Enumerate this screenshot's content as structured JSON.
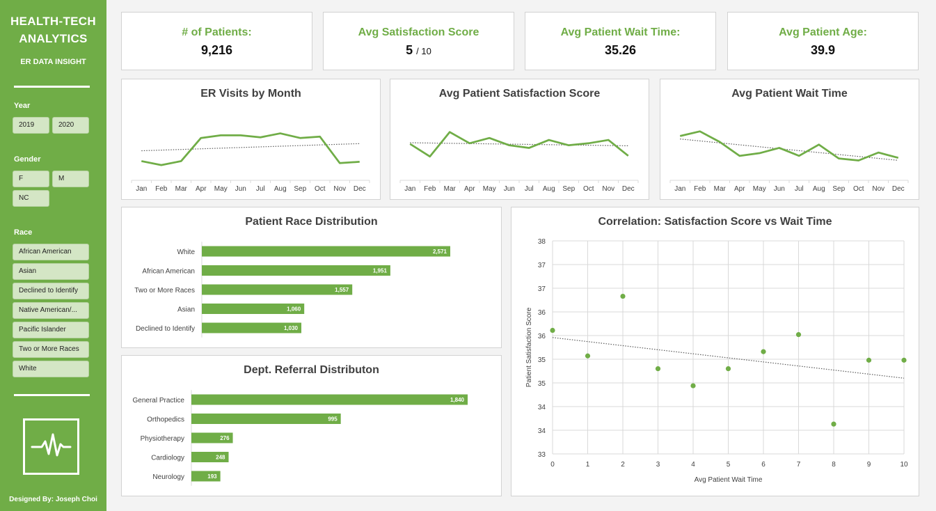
{
  "sidebar": {
    "title_line1": "HEALTH-TECH",
    "title_line2": "ANALYTICS",
    "subtitle": "ER DATA INSIGHT",
    "year_label": "Year",
    "years": [
      "2019",
      "2020"
    ],
    "gender_label": "Gender",
    "genders": [
      "F",
      "M",
      "NC"
    ],
    "race_label": "Race",
    "races": [
      "African American",
      "Asian",
      "Declined to Identify",
      "Native American/...",
      "Pacific Islander",
      "Two or More Races",
      "White"
    ],
    "logo_icon": "heartbeat-icon",
    "credit": "Designed By: Joseph Choi",
    "accent_color": "#70ad47"
  },
  "kpis": {
    "patients_label": "# of Patients:",
    "patients_value": "9,216",
    "satisfaction_label": "Avg Satisfaction Score",
    "satisfaction_value": "5",
    "satisfaction_suffix": "/ 10",
    "wait_label": "Avg Patient Wait Time:",
    "wait_value": "35.26",
    "age_label": "Avg Patient Age:",
    "age_value": "39.9"
  },
  "chart_data": [
    {
      "id": "visits",
      "type": "line",
      "title": "ER Visits by Month",
      "categories": [
        "Jan",
        "Feb",
        "Mar",
        "Apr",
        "May",
        "Jun",
        "Jul",
        "Aug",
        "Sep",
        "Oct",
        "Nov",
        "Dec"
      ],
      "values": [
        0.29,
        0.23,
        0.29,
        0.64,
        0.68,
        0.68,
        0.65,
        0.71,
        0.64,
        0.66,
        0.26,
        0.28
      ],
      "trendline": true,
      "ylim": [
        0,
        1
      ],
      "color": "#70ad47"
    },
    {
      "id": "satisfaction",
      "type": "line",
      "title": "Avg Patient Satisfaction Score",
      "categories": [
        "Jan",
        "Feb",
        "Mar",
        "Apr",
        "May",
        "Jun",
        "Jul",
        "Aug",
        "Sep",
        "Oct",
        "Nov",
        "Dec"
      ],
      "values": [
        0.55,
        0.36,
        0.73,
        0.56,
        0.64,
        0.53,
        0.49,
        0.61,
        0.53,
        0.56,
        0.61,
        0.37
      ],
      "trendline": true,
      "ylim": [
        0,
        1
      ],
      "color": "#70ad47"
    },
    {
      "id": "wait",
      "type": "line",
      "title": "Avg Patient Wait Time",
      "categories": [
        "Jan",
        "Feb",
        "Mar",
        "Apr",
        "May",
        "Jun",
        "Jul",
        "Aug",
        "Sep",
        "Oct",
        "Nov",
        "Dec"
      ],
      "values": [
        0.67,
        0.74,
        0.58,
        0.37,
        0.41,
        0.49,
        0.37,
        0.54,
        0.33,
        0.3,
        0.42,
        0.34
      ],
      "trendline": true,
      "ylim": [
        0,
        1
      ],
      "color": "#70ad47"
    },
    {
      "id": "race",
      "type": "bar",
      "orientation": "horizontal",
      "title": "Patient Race Distribution",
      "categories": [
        "White",
        "African American",
        "Two or More Races",
        "Asian",
        "Declined to Identify"
      ],
      "values": [
        2571,
        1951,
        1557,
        1060,
        1030
      ],
      "value_labels": [
        "2,571",
        "1,951",
        "1,557",
        "1,060",
        "1,030"
      ],
      "color": "#70ad47"
    },
    {
      "id": "referral",
      "type": "bar",
      "orientation": "horizontal",
      "title": "Dept. Referral Distributon",
      "categories": [
        "General Practice",
        "Orthopedics",
        "Physiotherapy",
        "Cardiology",
        "Neurology"
      ],
      "values": [
        1840,
        995,
        276,
        248,
        193
      ],
      "value_labels": [
        "1,840",
        "995",
        "276",
        "248",
        "193"
      ],
      "color": "#70ad47"
    },
    {
      "id": "scatter",
      "type": "scatter",
      "title": "Correlation: Satisfaction Score vs Wait Time",
      "xlabel": "Avg Patient Wait Time",
      "ylabel": "Patient Satisfaction Score",
      "x_ticks": [
        "0",
        "1",
        "2",
        "3",
        "4",
        "5",
        "6",
        "7",
        "8",
        "9",
        "10"
      ],
      "y_ticks": [
        "38",
        "37",
        "37",
        "36",
        "36",
        "35",
        "35",
        "34",
        "34",
        "33"
      ],
      "xlim": [
        0,
        10
      ],
      "ylim": [
        33,
        38
      ],
      "points": [
        {
          "x": 0,
          "y": 35.9
        },
        {
          "x": 1,
          "y": 35.3
        },
        {
          "x": 2,
          "y": 36.7
        },
        {
          "x": 3,
          "y": 35.0
        },
        {
          "x": 4,
          "y": 34.6
        },
        {
          "x": 5,
          "y": 35.0
        },
        {
          "x": 6,
          "y": 35.4
        },
        {
          "x": 7,
          "y": 35.8
        },
        {
          "x": 8,
          "y": 33.7
        },
        {
          "x": 9,
          "y": 35.2
        },
        {
          "x": 10,
          "y": 35.2
        }
      ],
      "trendline": true,
      "grid": true,
      "color": "#70ad47"
    }
  ]
}
